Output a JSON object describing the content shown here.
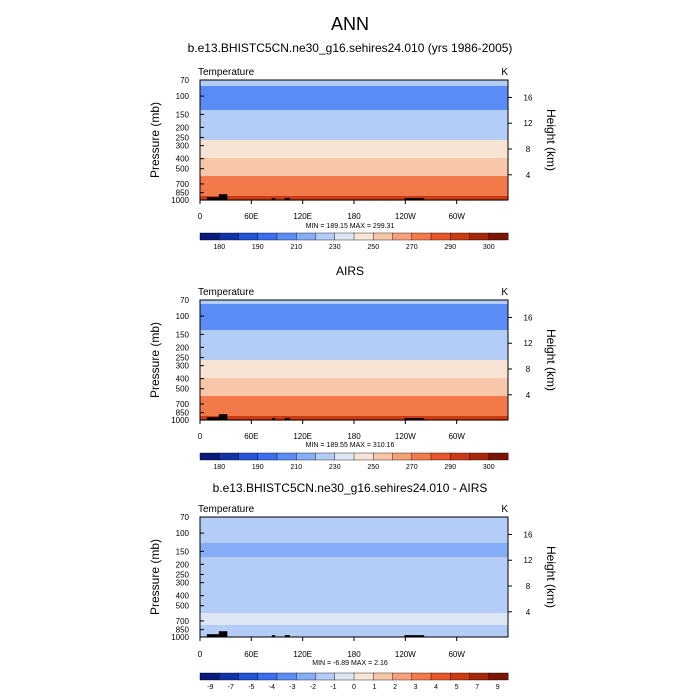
{
  "title": "ANN",
  "chart_data": [
    {
      "type": "heatmap",
      "title": "b.e13.BHISTC5CN.ne30_g16.sehires24.010 (yrs 1986-2005)",
      "left_label": "Temperature",
      "units": "K",
      "ylabel": "Pressure (mb)",
      "ylabel_right": "Height (km)",
      "x_ticks": [
        "0",
        "60E",
        "120E",
        "180",
        "120W",
        "60W"
      ],
      "x_tick_values": [
        0,
        60,
        120,
        180,
        240,
        300
      ],
      "y_ticks": [
        "70",
        "100",
        "150",
        "200",
        "250",
        "300",
        "400",
        "500",
        "700",
        "850",
        "1000"
      ],
      "y_tick_values": [
        70,
        100,
        150,
        200,
        250,
        300,
        400,
        500,
        700,
        850,
        1000
      ],
      "y_right_ticks": [
        "16",
        "12",
        "8",
        "4"
      ],
      "y_right_tick_values": [
        16,
        12,
        8,
        4
      ],
      "stats": "MIN = 189.15  MAX = 299.31",
      "colorbar_labels": [
        "180",
        "190",
        "210",
        "230",
        "250",
        "270",
        "290",
        "300"
      ],
      "colorbar_colors": [
        "#0a1a7a",
        "#1432a8",
        "#2454d8",
        "#3a6ef0",
        "#5a8cf6",
        "#86aef8",
        "#b4cdf6",
        "#dce6f4",
        "#f8e4d4",
        "#f8c6a8",
        "#f6a07a",
        "#f27a4a",
        "#e8552a",
        "#cc3a14",
        "#a8260a",
        "#7a1404"
      ],
      "profile": [
        {
          "p": 70,
          "v": 213
        },
        {
          "p": 100,
          "v": 204
        },
        {
          "p": 150,
          "v": 212
        },
        {
          "p": 200,
          "v": 220
        },
        {
          "p": 250,
          "v": 228
        },
        {
          "p": 300,
          "v": 237
        },
        {
          "p": 400,
          "v": 251
        },
        {
          "p": 500,
          "v": 262
        },
        {
          "p": 700,
          "v": 278
        },
        {
          "p": 850,
          "v": 286
        },
        {
          "p": 1000,
          "v": 296
        }
      ]
    },
    {
      "type": "heatmap",
      "title": "AIRS",
      "left_label": "Temperature",
      "units": "K",
      "ylabel": "Pressure (mb)",
      "ylabel_right": "Height (km)",
      "x_ticks": [
        "0",
        "60E",
        "120E",
        "180",
        "120W",
        "60W"
      ],
      "x_tick_values": [
        0,
        60,
        120,
        180,
        240,
        300
      ],
      "y_ticks": [
        "70",
        "100",
        "150",
        "200",
        "250",
        "300",
        "400",
        "500",
        "700",
        "850",
        "1000"
      ],
      "y_tick_values": [
        70,
        100,
        150,
        200,
        250,
        300,
        400,
        500,
        700,
        850,
        1000
      ],
      "y_right_ticks": [
        "16",
        "12",
        "8",
        "4"
      ],
      "y_right_tick_values": [
        16,
        12,
        8,
        4
      ],
      "stats": "MIN = 189.55  MAX = 310.16",
      "colorbar_labels": [
        "180",
        "190",
        "210",
        "230",
        "250",
        "270",
        "290",
        "300"
      ],
      "colorbar_colors": [
        "#0a1a7a",
        "#1432a8",
        "#2454d8",
        "#3a6ef0",
        "#5a8cf6",
        "#86aef8",
        "#b4cdf6",
        "#dce6f4",
        "#f8e4d4",
        "#f8c6a8",
        "#f6a07a",
        "#f27a4a",
        "#e8552a",
        "#cc3a14",
        "#a8260a",
        "#7a1404"
      ],
      "profile": [
        {
          "p": 70,
          "v": 212
        },
        {
          "p": 100,
          "v": 205
        },
        {
          "p": 150,
          "v": 212
        },
        {
          "p": 200,
          "v": 220
        },
        {
          "p": 250,
          "v": 228
        },
        {
          "p": 300,
          "v": 237
        },
        {
          "p": 400,
          "v": 251
        },
        {
          "p": 500,
          "v": 262
        },
        {
          "p": 700,
          "v": 278
        },
        {
          "p": 850,
          "v": 286
        },
        {
          "p": 1000,
          "v": 297
        }
      ]
    },
    {
      "type": "heatmap",
      "title": "b.e13.BHISTC5CN.ne30_g16.sehires24.010 - AIRS",
      "left_label": "Temperature",
      "units": "K",
      "ylabel": "Pressure (mb)",
      "ylabel_right": "Height (km)",
      "x_ticks": [
        "0",
        "60E",
        "120E",
        "180",
        "120W",
        "60W"
      ],
      "x_tick_values": [
        0,
        60,
        120,
        180,
        240,
        300
      ],
      "y_ticks": [
        "70",
        "100",
        "150",
        "200",
        "250",
        "300",
        "400",
        "500",
        "700",
        "850",
        "1000"
      ],
      "y_tick_values": [
        70,
        100,
        150,
        200,
        250,
        300,
        400,
        500,
        700,
        850,
        1000
      ],
      "y_right_ticks": [
        "16",
        "12",
        "8",
        "4"
      ],
      "y_right_tick_values": [
        16,
        12,
        8,
        4
      ],
      "stats": "MIN =  -6.89  MAX =   2.16",
      "colorbar_labels": [
        "-9",
        "-7",
        "-5",
        "-4",
        "-3",
        "-2",
        "-1",
        "0",
        "1",
        "2",
        "3",
        "4",
        "5",
        "7",
        "9"
      ],
      "colorbar_colors": [
        "#0a1a7a",
        "#1432a8",
        "#2454d8",
        "#3a6ef0",
        "#5a8cf6",
        "#86aef8",
        "#b4cdf6",
        "#dce6f4",
        "#f8e4d4",
        "#f8c6a8",
        "#f6a07a",
        "#f27a4a",
        "#e8552a",
        "#cc3a14",
        "#a8260a",
        "#7a1404"
      ],
      "profile": [
        {
          "p": 70,
          "v": -1.5
        },
        {
          "p": 100,
          "v": -1.5
        },
        {
          "p": 150,
          "v": -2.5
        },
        {
          "p": 200,
          "v": -1.5
        },
        {
          "p": 300,
          "v": -1.5
        },
        {
          "p": 400,
          "v": -1.5
        },
        {
          "p": 500,
          "v": -1.5
        },
        {
          "p": 700,
          "v": -0.5
        },
        {
          "p": 850,
          "v": -1.5
        },
        {
          "p": 1000,
          "v": -1.5
        }
      ]
    }
  ]
}
